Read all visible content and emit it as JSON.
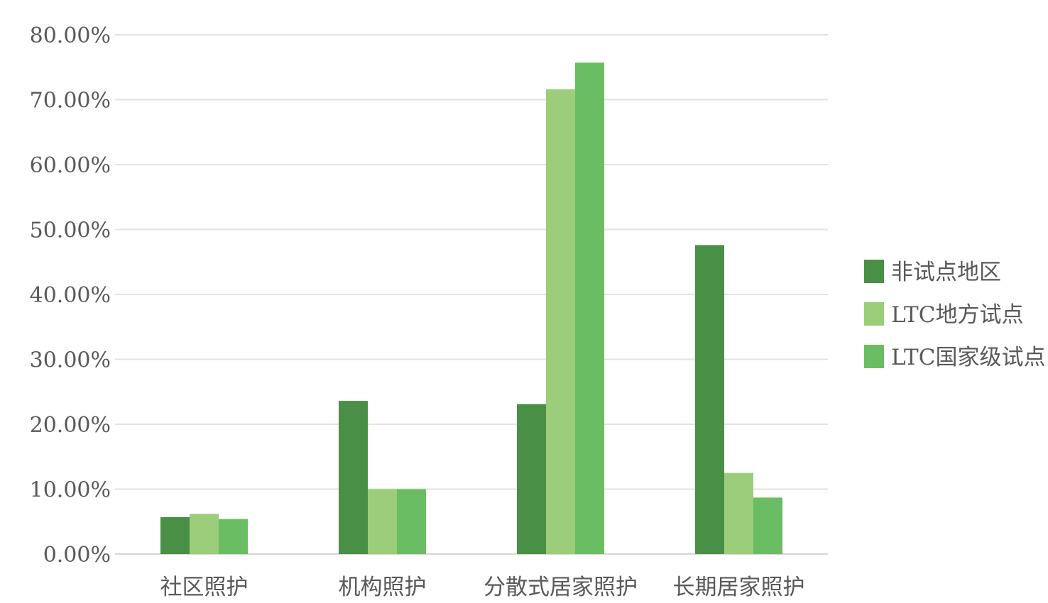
{
  "chart_data": {
    "type": "bar",
    "categories": [
      "社区照护",
      "机构照护",
      "分散式居家照护",
      "长期居家照护"
    ],
    "series": [
      {
        "name": "非试点地区",
        "color": "#4a8f46",
        "values": [
          5.7,
          23.6,
          23.1,
          47.6
        ]
      },
      {
        "name": "LTC地方试点",
        "color": "#9ccd7a",
        "values": [
          6.2,
          10.0,
          71.6,
          12.5
        ]
      },
      {
        "name": "LTC国家级试点",
        "color": "#6bbd63",
        "values": [
          5.4,
          10.0,
          75.7,
          8.7
        ]
      }
    ],
    "ylim": [
      0,
      80
    ],
    "yticks": [
      0,
      10,
      20,
      30,
      40,
      50,
      60,
      70,
      80
    ],
    "y_tick_labels": [
      "0.00%",
      "10.00%",
      "20.00%",
      "30.00%",
      "40.00%",
      "50.00%",
      "60.00%",
      "70.00%",
      "80.00%"
    ],
    "grid": true,
    "legend_position": "right",
    "title": "",
    "xlabel": "",
    "ylabel": ""
  }
}
